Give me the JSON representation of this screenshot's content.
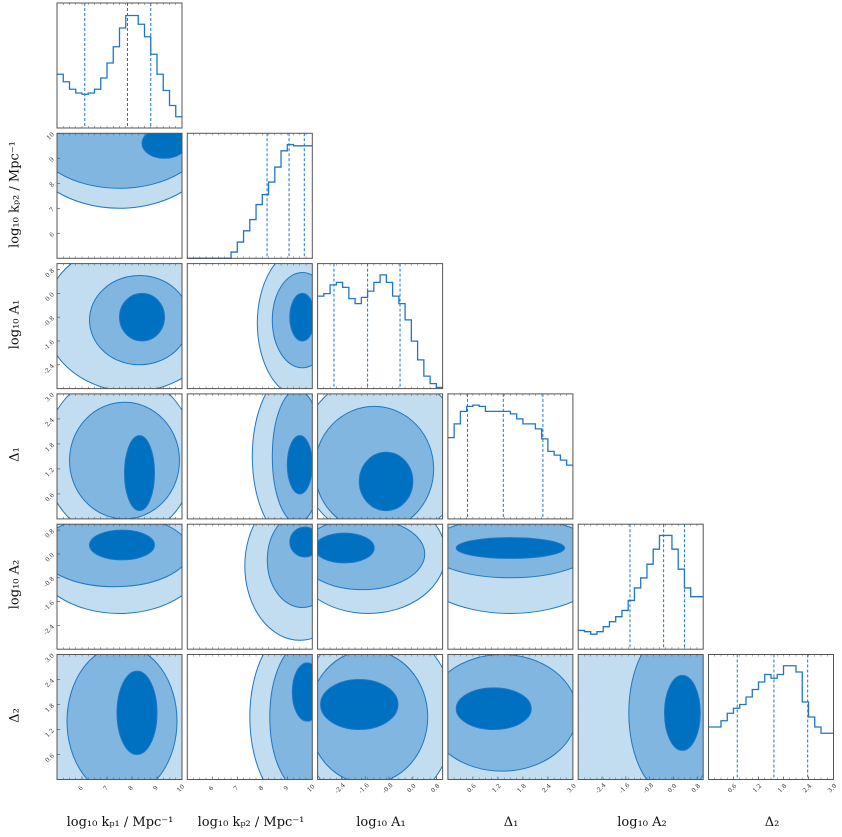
{
  "colors": {
    "line": "#1f77c4",
    "light": "#c3ddf0",
    "mid": "#80b6df",
    "dark": "#0070c0",
    "axis": "#555555"
  },
  "chart_data": {
    "type": "corner",
    "parameters": [
      {
        "name": "kp1",
        "label": "log₁₀ kₚ₁ / Mpc⁻¹",
        "range": [
          5,
          10
        ],
        "ticks": [
          "6",
          "7",
          "8",
          "9",
          "10"
        ]
      },
      {
        "name": "kp2",
        "label": "log₁₀ kₚ₂ / Mpc⁻¹",
        "range": [
          5,
          10
        ],
        "ticks": [
          "6",
          "7",
          "8",
          "9",
          "10"
        ]
      },
      {
        "name": "A1",
        "label": "log₁₀ A₁",
        "range": [
          -3.2,
          1.0
        ],
        "ticks": [
          "-2.4",
          "-1.6",
          "-0.8",
          "0.0",
          "0.8"
        ]
      },
      {
        "name": "Delta1",
        "label": "Δ₁",
        "range": [
          0,
          3
        ],
        "ticks": [
          "0.6",
          "1.2",
          "1.8",
          "2.4",
          "3.0"
        ]
      },
      {
        "name": "A2",
        "label": "log₁₀ A₂",
        "range": [
          -3.2,
          1.0
        ],
        "ticks": [
          "-2.4",
          "-1.6",
          "-0.8",
          "0.0",
          "0.8"
        ]
      },
      {
        "name": "Delta2",
        "label": "Δ₂",
        "range": [
          0,
          3
        ],
        "ticks": [
          "0.6",
          "1.2",
          "1.8",
          "2.4",
          "3.0"
        ]
      }
    ],
    "histograms": [
      {
        "values": [
          0.43,
          0.37,
          0.31,
          0.28,
          0.27,
          0.28,
          0.31,
          0.4,
          0.52,
          0.65,
          0.8,
          0.9,
          0.9,
          0.83,
          0.73,
          0.59,
          0.43,
          0.3,
          0.18,
          0.09
        ],
        "quantiles": [
          6.11,
          7.82,
          8.75
        ]
      },
      {
        "values": [
          0,
          0,
          0,
          0,
          0,
          0,
          0,
          0.05,
          0.13,
          0.22,
          0.31,
          0.43,
          0.51,
          0.61,
          0.73,
          0.86,
          0.91,
          0.9,
          0.9,
          0.9
        ],
        "quantiles": [
          8.19,
          9.07,
          9.68
        ]
      },
      {
        "values": [
          0.74,
          0.76,
          0.83,
          0.85,
          0.81,
          0.72,
          0.68,
          0.73,
          0.78,
          0.85,
          0.91,
          0.85,
          0.74,
          0.68,
          0.55,
          0.38,
          0.23,
          0.1,
          0.04,
          0.01
        ],
        "quantiles": [
          -2.65,
          -1.52,
          -0.43
        ]
      },
      {
        "values": [
          0.65,
          0.76,
          0.86,
          0.9,
          0.91,
          0.9,
          0.86,
          0.86,
          0.86,
          0.86,
          0.84,
          0.8,
          0.76,
          0.76,
          0.72,
          0.64,
          0.54,
          0.51,
          0.47,
          0.43
        ],
        "quantiles": [
          0.47,
          1.33,
          2.28
        ]
      },
      {
        "values": [
          0.15,
          0.14,
          0.12,
          0.14,
          0.18,
          0.22,
          0.26,
          0.31,
          0.39,
          0.49,
          0.57,
          0.68,
          0.8,
          0.91,
          0.91,
          0.8,
          0.64,
          0.49,
          0.42,
          0.42
        ],
        "quantiles": [
          -1.46,
          -0.33,
          0.37
        ]
      },
      {
        "values": [
          0.42,
          0.42,
          0.47,
          0.53,
          0.57,
          0.6,
          0.66,
          0.72,
          0.78,
          0.84,
          0.81,
          0.84,
          0.91,
          0.91,
          0.86,
          0.62,
          0.5,
          0.42,
          0.37,
          0.37
        ],
        "quantiles": [
          0.69,
          1.57,
          2.38
        ]
      }
    ],
    "contours": [
      {
        "row": 1,
        "col": 0,
        "levels": [
          [
            7.5,
            10,
            4,
            3
          ],
          [
            7.5,
            10,
            3.5,
            2.2
          ],
          [
            9.3,
            9.6,
            0.9,
            0.6
          ]
        ]
      },
      {
        "row": 2,
        "col": 0,
        "levels": [
          [
            8,
            -0.8,
            3.5,
            2.5
          ],
          [
            8.3,
            -0.9,
            2,
            1.5
          ],
          [
            8.4,
            -0.8,
            0.9,
            0.8
          ]
        ]
      },
      {
        "row": 2,
        "col": 1,
        "levels": [
          [
            9.6,
            -1,
            1.8,
            2.5
          ],
          [
            9.6,
            -0.9,
            1.2,
            1.6
          ],
          [
            9.6,
            -0.8,
            0.5,
            0.8
          ]
        ]
      },
      {
        "row": 3,
        "col": 0,
        "levels": [
          [
            7.5,
            1.5,
            3,
            2
          ],
          [
            7.7,
            1.4,
            2.2,
            1.4
          ],
          [
            8.3,
            1.1,
            0.6,
            0.9
          ]
        ]
      },
      {
        "row": 3,
        "col": 1,
        "levels": [
          [
            9.2,
            1.5,
            1.6,
            2
          ],
          [
            9.4,
            1.5,
            1,
            1.6
          ],
          [
            9.5,
            1.3,
            0.5,
            0.7
          ]
        ]
      },
      {
        "row": 3,
        "col": 2,
        "levels": [
          [
            -1,
            1.5,
            2.8,
            2
          ],
          [
            -1.3,
            1.2,
            2,
            1.5
          ],
          [
            -0.9,
            0.9,
            0.9,
            0.7
          ]
        ]
      },
      {
        "row": 4,
        "col": 0,
        "levels": [
          [
            7.5,
            0,
            3.5,
            2
          ],
          [
            7.3,
            0.1,
            3,
            1.2
          ],
          [
            7.6,
            0.3,
            1.3,
            0.5
          ]
        ]
      },
      {
        "row": 4,
        "col": 1,
        "levels": [
          [
            9.5,
            -0.4,
            2.2,
            2.5
          ],
          [
            9.6,
            -0.2,
            1.4,
            1.6
          ],
          [
            9.7,
            0.4,
            0.6,
            0.5
          ]
        ]
      },
      {
        "row": 4,
        "col": 2,
        "levels": [
          [
            -1.5,
            0,
            2.6,
            2
          ],
          [
            -1.7,
            0,
            2.1,
            1.2
          ],
          [
            -2.3,
            0.2,
            1,
            0.5
          ]
        ]
      },
      {
        "row": 4,
        "col": 3,
        "levels": [
          [
            1.5,
            0,
            2.5,
            2
          ],
          [
            1.5,
            0.2,
            2,
            1
          ],
          [
            1.5,
            0.2,
            1.3,
            0.35
          ]
        ]
      },
      {
        "row": 5,
        "col": 0,
        "levels": [
          [
            7.5,
            1.5,
            3.5,
            2.5
          ],
          [
            7.6,
            1.4,
            2.2,
            1.8
          ],
          [
            8.2,
            1.6,
            0.8,
            1
          ]
        ]
      },
      {
        "row": 5,
        "col": 1,
        "levels": [
          [
            9.5,
            1.5,
            2,
            2.2
          ],
          [
            9.7,
            1.5,
            1.4,
            1.8
          ],
          [
            9.8,
            2.1,
            0.6,
            0.7
          ]
        ]
      },
      {
        "row": 5,
        "col": 2,
        "levels": [
          [
            -1.2,
            1.5,
            2.6,
            2.2
          ],
          [
            -1.5,
            1.5,
            2,
            1.6
          ],
          [
            -1.8,
            1.8,
            1.3,
            0.6
          ]
        ]
      },
      {
        "row": 5,
        "col": 3,
        "levels": [
          [
            1.5,
            1.5,
            2.5,
            2.2
          ],
          [
            1.3,
            1.6,
            1.8,
            1.4
          ],
          [
            1.1,
            1.7,
            0.9,
            0.5
          ]
        ]
      },
      {
        "row": 5,
        "col": 4,
        "levels": [
          [
            -1,
            1.5,
            3,
            2.2
          ],
          [
            0,
            1.6,
            1.5,
            2
          ],
          [
            0.3,
            1.6,
            0.6,
            0.9
          ]
        ]
      }
    ]
  }
}
